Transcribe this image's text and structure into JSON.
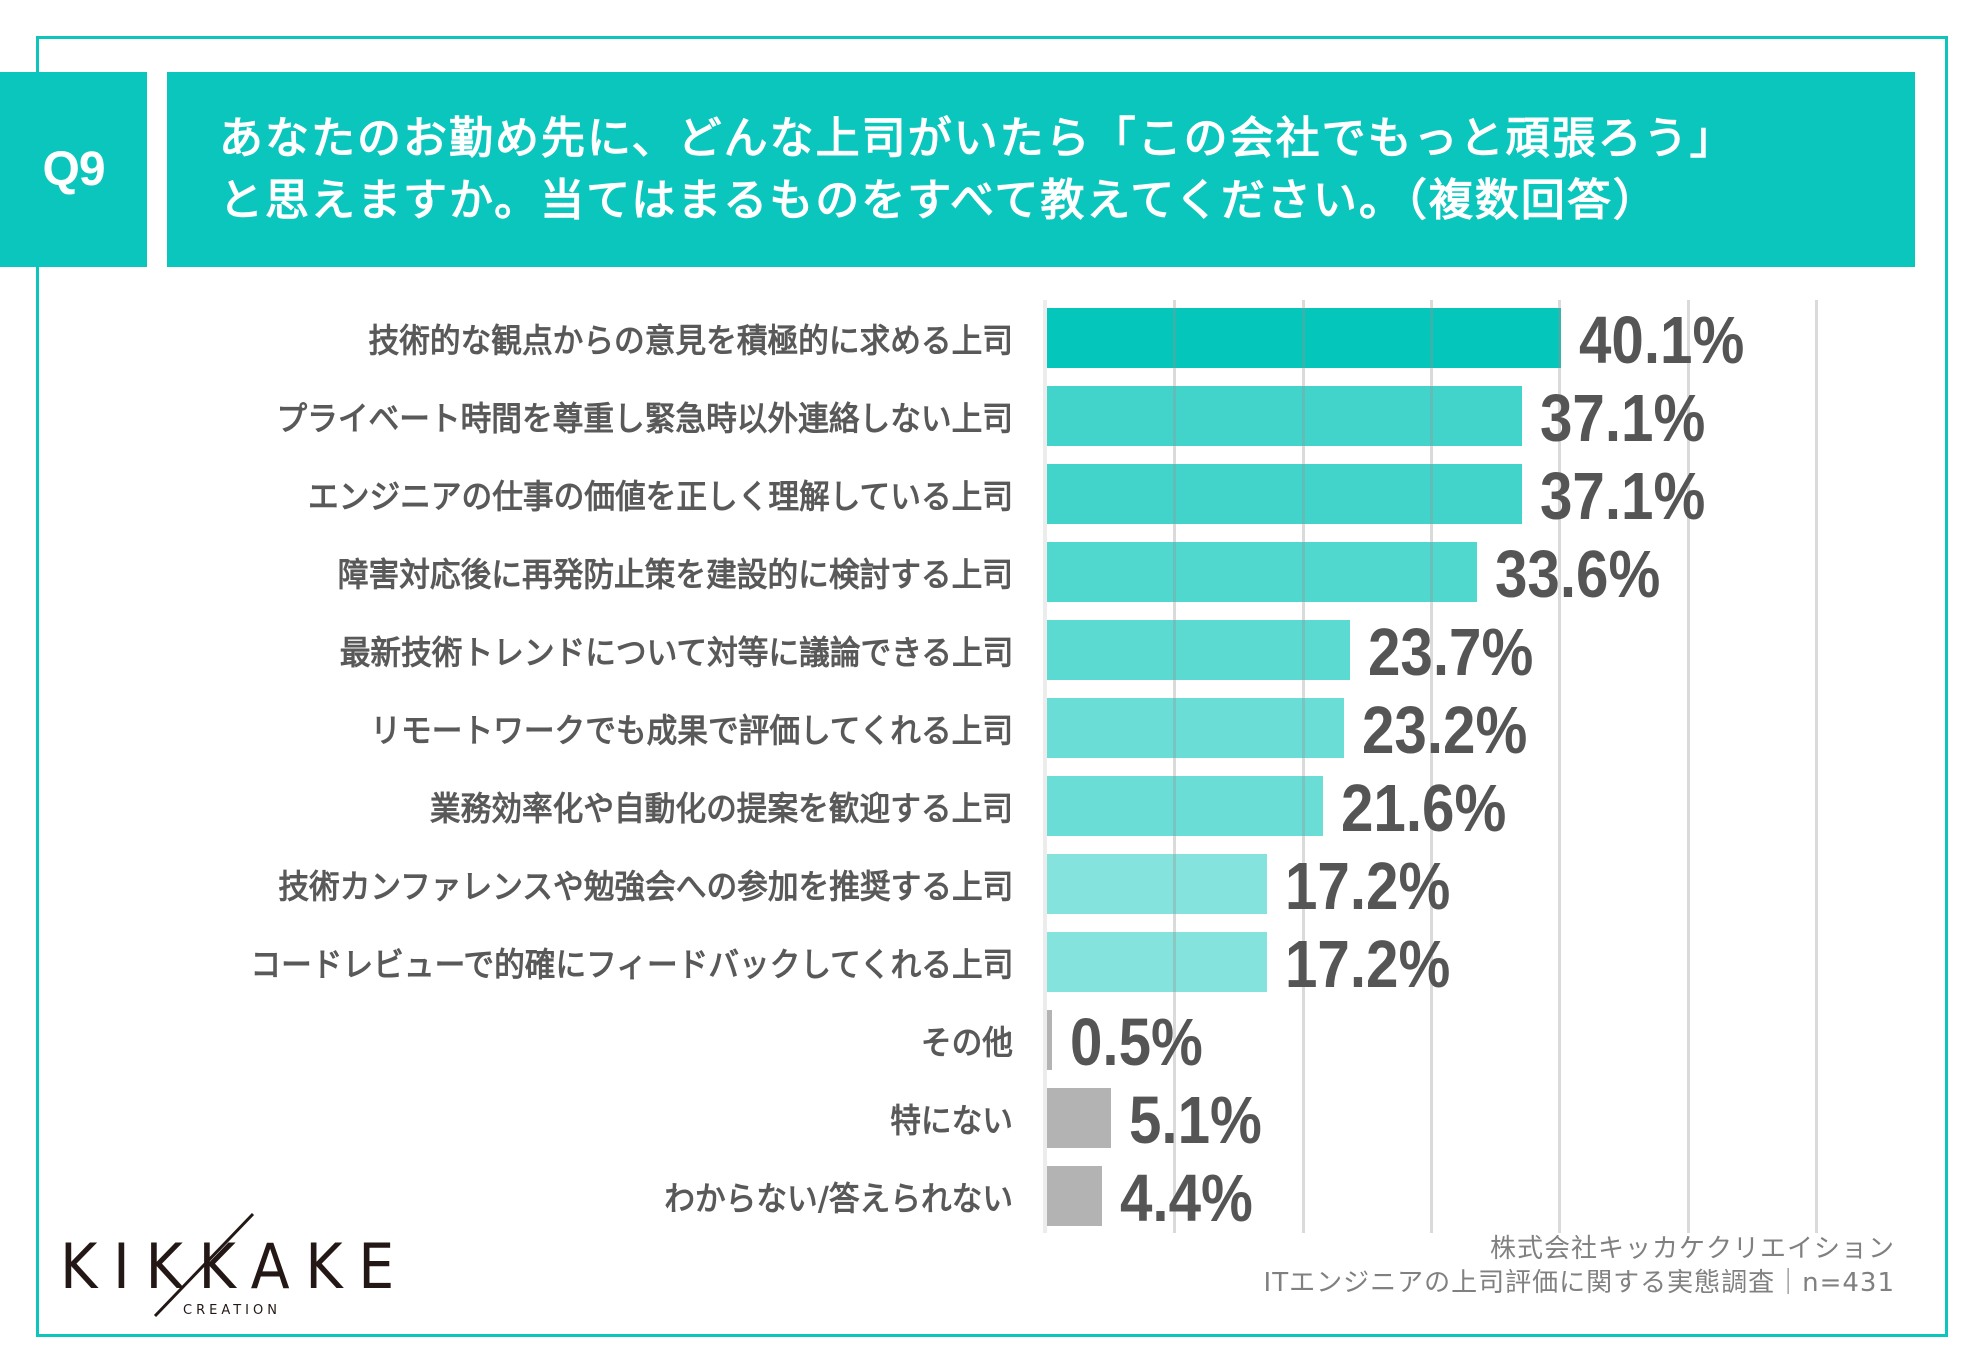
{
  "header": {
    "question_number": "Q9",
    "title_lines": [
      "あなたのお勤め先に、どんな上司がいたら「この会社でもっと頑張ろう」",
      "と思えますか。当てはまるものをすべて教えてください。（複数回答）"
    ],
    "accent_color": "#0bc6bc"
  },
  "chart_data": {
    "type": "bar",
    "orientation": "horizontal",
    "title": "あなたのお勤め先に、どんな上司がいたら「この会社でもっと頑張ろう」と思えますか。当てはまるものをすべて教えてください。（複数回答）",
    "xlabel": "",
    "ylabel": "",
    "xlim": [
      0,
      60
    ],
    "grid": true,
    "gridline_values": [
      10,
      20,
      30,
      40,
      50,
      60
    ],
    "unit": "%",
    "categories": [
      "技術的な観点からの意見を積極的に求める上司",
      "プライベート時間を尊重し緊急時以外連絡しない上司",
      "エンジニアの仕事の価値を正しく理解している上司",
      "障害対応後に再発防止策を建設的に検討する上司",
      "最新技術トレンドについて対等に議論できる上司",
      "リモートワークでも成果で評価してくれる上司",
      "業務効率化や自動化の提案を歓迎する上司",
      "技術カンファレンスや勉強会への参加を推奨する上司",
      "コードレビューで的確にフィードバックしてくれる上司",
      "その他",
      "特にない",
      "わからない/答えられない"
    ],
    "values": [
      40.1,
      37.1,
      37.1,
      33.6,
      23.7,
      23.2,
      21.6,
      17.2,
      17.2,
      0.5,
      5.1,
      4.4
    ],
    "value_labels": [
      "40.1%",
      "37.1%",
      "37.1%",
      "33.6%",
      "23.7%",
      "23.2%",
      "21.6%",
      "17.2%",
      "17.2%",
      "0.5%",
      "5.1%",
      "4.4%"
    ],
    "colors": [
      "#05c6bb",
      "#42d4ca",
      "#42d4ca",
      "#50d8ce",
      "#5bdad2",
      "#69ddd6",
      "#69ddd6",
      "#84e3dd",
      "#84e3dd",
      "#b3b3b3",
      "#b3b3b3",
      "#b3b3b3"
    ]
  },
  "logo": {
    "main": "KIKKAKE",
    "sub": "CREATION"
  },
  "footer": {
    "company": "株式会社キッカケクリエイション",
    "survey": "ITエンジニアの上司評価に関する実態調査｜n=431"
  }
}
